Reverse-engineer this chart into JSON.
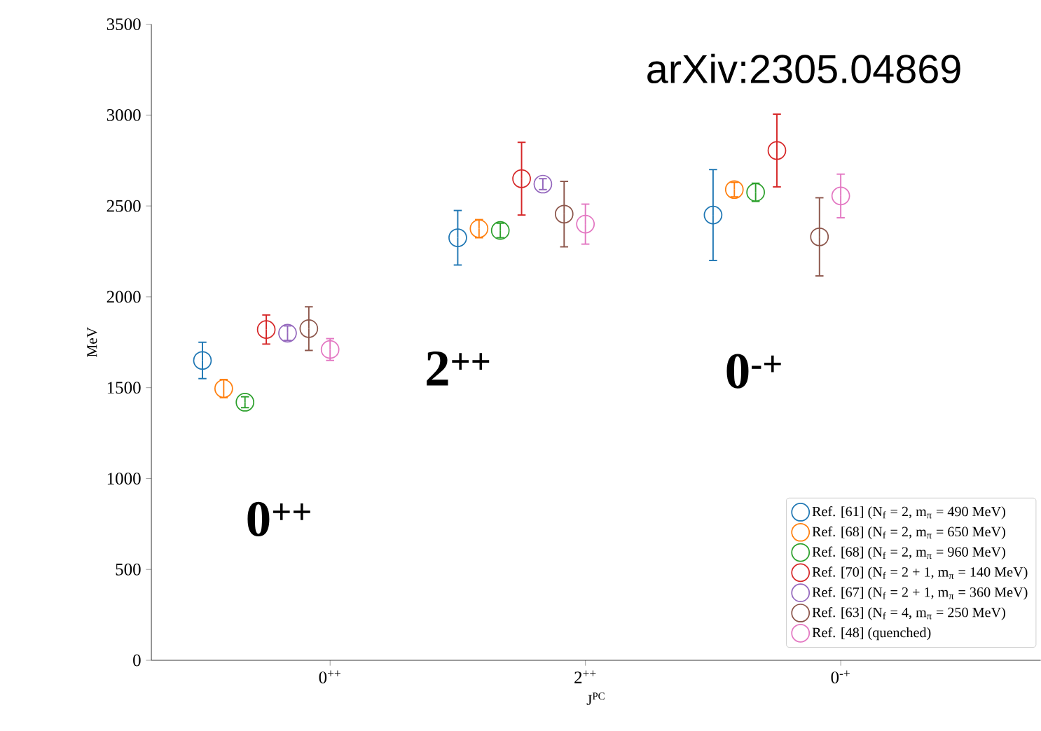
{
  "chart_data": {
    "type": "scatter",
    "xlabel": "J$^{PC}$",
    "ylabel": "MeV",
    "categories": [
      null,
      null,
      null,
      null,
      null,
      null,
      null,
      null,
      "0$^{++}$",
      null,
      null,
      null,
      null,
      null,
      null,
      null,
      null,
      null,
      null,
      null,
      "2$^{++}$",
      null,
      null,
      null,
      null,
      null,
      null,
      null,
      null,
      null,
      null,
      null,
      "0$^{-+}$",
      null,
      null,
      null
    ],
    "ylim": [
      0,
      3500
    ],
    "yticks": [
      0,
      500,
      1000,
      1500,
      2000,
      2500,
      3000,
      3500
    ],
    "marker": "circle",
    "legend": "bottom right",
    "grid": false,
    "series": [
      {
        "name": "Ref. [61] (N$_{f}$ = 2, m$_{π}$ = 490 MeV)",
        "color": "#1f77b4",
        "values": [
          null,
          null,
          1650,
          null,
          null,
          null,
          null,
          null,
          null,
          null,
          null,
          null,
          null,
          null,
          2325,
          null,
          null,
          null,
          null,
          null,
          null,
          null,
          null,
          null,
          null,
          null,
          2450,
          null,
          null,
          null,
          null,
          null,
          null,
          null,
          null,
          null
        ],
        "errors": [
          null,
          null,
          100,
          null,
          null,
          null,
          null,
          null,
          null,
          null,
          null,
          null,
          null,
          null,
          150,
          null,
          null,
          null,
          null,
          null,
          null,
          null,
          null,
          null,
          null,
          null,
          250,
          null,
          null,
          null,
          null,
          null,
          null,
          null,
          null,
          null
        ]
      },
      {
        "name": "Ref. [68] (N$_{f}$ = 2, m$_{π}$ = 650 MeV)",
        "color": "#ff7f0e",
        "values": [
          null,
          null,
          null,
          1495,
          null,
          null,
          null,
          null,
          null,
          null,
          null,
          null,
          null,
          null,
          null,
          2375,
          null,
          null,
          null,
          null,
          null,
          null,
          null,
          null,
          null,
          null,
          null,
          2590,
          null,
          null,
          null,
          null,
          null,
          null,
          null,
          null
        ],
        "errors": [
          null,
          null,
          null,
          50,
          null,
          null,
          null,
          null,
          null,
          null,
          null,
          null,
          null,
          null,
          null,
          50,
          null,
          null,
          null,
          null,
          null,
          null,
          null,
          null,
          null,
          null,
          null,
          40,
          null,
          null,
          null,
          null,
          null,
          null,
          null,
          null
        ]
      },
      {
        "name": "Ref. [68] (N$_{f}$ = 2, m$_{π}$ = 960 MeV)",
        "color": "#2ca02c",
        "values": [
          null,
          null,
          null,
          null,
          1420,
          null,
          null,
          null,
          null,
          null,
          null,
          null,
          null,
          null,
          null,
          null,
          2365,
          null,
          null,
          null,
          null,
          null,
          null,
          null,
          null,
          null,
          null,
          null,
          2575,
          null,
          null,
          null,
          null,
          null,
          null,
          null
        ],
        "errors": [
          null,
          null,
          null,
          null,
          30,
          null,
          null,
          null,
          null,
          null,
          null,
          null,
          null,
          null,
          null,
          null,
          40,
          null,
          null,
          null,
          null,
          null,
          null,
          null,
          null,
          null,
          null,
          null,
          50,
          null,
          null,
          null,
          null,
          null,
          null,
          null
        ]
      },
      {
        "name": "Ref. [70] (N$_{f}$ = 2 + 1, m$_{π}$ = 140 MeV)",
        "color": "#d62728",
        "values": [
          null,
          null,
          null,
          null,
          null,
          1820,
          null,
          null,
          null,
          null,
          null,
          null,
          null,
          null,
          null,
          null,
          null,
          2650,
          null,
          null,
          null,
          null,
          null,
          null,
          null,
          null,
          null,
          null,
          null,
          2805,
          null,
          null,
          null,
          null,
          null,
          null
        ],
        "errors": [
          null,
          null,
          null,
          null,
          null,
          80,
          null,
          null,
          null,
          null,
          null,
          null,
          null,
          null,
          null,
          null,
          null,
          200,
          null,
          null,
          null,
          null,
          null,
          null,
          null,
          null,
          null,
          null,
          null,
          200,
          null,
          null,
          null,
          null,
          null,
          null
        ]
      },
      {
        "name": "Ref. [67] (N$_{f}$ = 2 + 1, m$_{π}$ = 360 MeV)",
        "color": "#9467bd",
        "values": [
          null,
          null,
          null,
          null,
          null,
          null,
          1800,
          null,
          null,
          null,
          null,
          null,
          null,
          null,
          null,
          null,
          null,
          null,
          2620,
          null,
          null,
          null,
          null,
          null,
          null,
          null,
          null,
          null,
          null,
          null,
          null,
          null,
          null,
          null,
          null,
          null
        ],
        "errors": [
          null,
          null,
          null,
          null,
          null,
          null,
          40,
          null,
          null,
          null,
          null,
          null,
          null,
          null,
          null,
          null,
          null,
          null,
          30,
          null,
          null,
          null,
          null,
          null,
          null,
          null,
          null,
          null,
          null,
          null,
          null,
          null,
          null,
          null,
          null,
          null
        ]
      },
      {
        "name": "Ref. [63] (N$_{f}$ = 4, m$_{π}$ = 250 MeV)",
        "color": "#8c564b",
        "values": [
          null,
          null,
          null,
          null,
          null,
          null,
          null,
          1825,
          null,
          null,
          null,
          null,
          null,
          null,
          null,
          null,
          null,
          null,
          null,
          2455,
          null,
          null,
          null,
          null,
          null,
          null,
          null,
          null,
          null,
          null,
          null,
          2330,
          null,
          null,
          null,
          null
        ],
        "errors": [
          null,
          null,
          null,
          null,
          null,
          null,
          null,
          120,
          null,
          null,
          null,
          null,
          null,
          null,
          null,
          null,
          null,
          null,
          null,
          180,
          null,
          null,
          null,
          null,
          null,
          null,
          null,
          null,
          null,
          null,
          null,
          215,
          null,
          null,
          null,
          null
        ]
      },
      {
        "name": "Ref. [48] (quenched)",
        "color": "#e377c2",
        "values": [
          null,
          null,
          null,
          null,
          null,
          null,
          null,
          null,
          1710,
          null,
          null,
          null,
          null,
          null,
          null,
          null,
          null,
          null,
          null,
          null,
          2400,
          null,
          null,
          null,
          null,
          null,
          null,
          null,
          null,
          null,
          null,
          null,
          2555,
          null,
          null,
          null
        ],
        "errors": [
          null,
          null,
          null,
          null,
          null,
          null,
          null,
          null,
          60,
          null,
          null,
          null,
          null,
          null,
          null,
          null,
          null,
          null,
          null,
          null,
          110,
          null,
          null,
          null,
          null,
          null,
          null,
          null,
          null,
          null,
          null,
          null,
          120,
          null,
          null,
          null
        ]
      }
    ],
    "annotations": [
      "arXiv:2305.04869",
      "0$^{++}$",
      "2$^{++}$",
      "0$^{-+}$"
    ]
  }
}
